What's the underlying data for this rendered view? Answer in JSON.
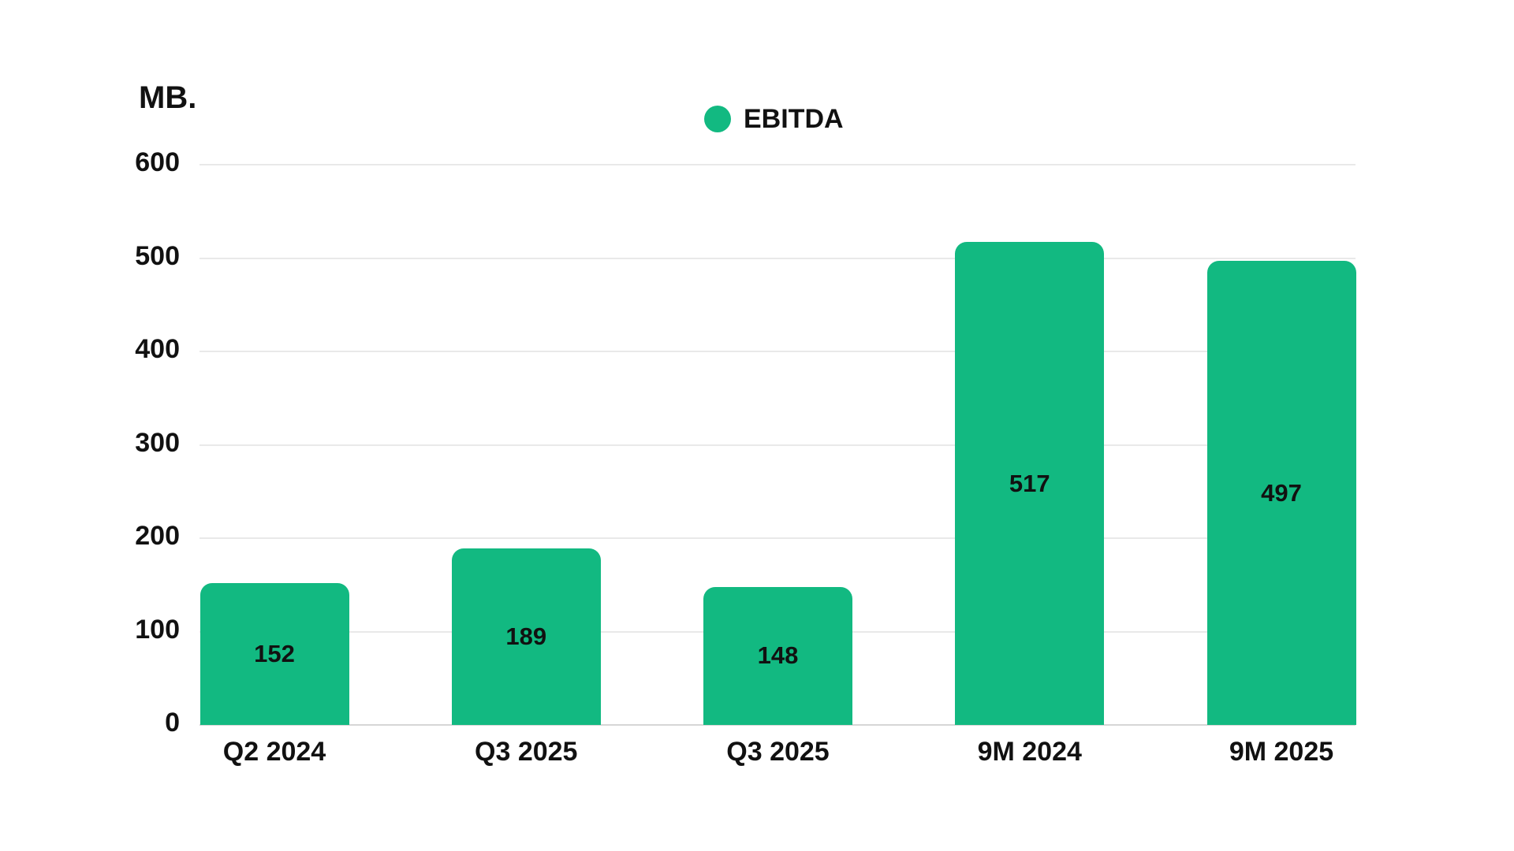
{
  "chart_data": {
    "type": "bar",
    "title": "",
    "unit_label": "MB.",
    "categories": [
      "Q2 2024",
      "Q3 2025",
      "Q3 2025",
      "9M 2024",
      "9M 2025"
    ],
    "series": [
      {
        "name": "EBITDA",
        "color": "#12B981",
        "values": [
          152,
          189,
          148,
          517,
          497
        ]
      }
    ],
    "value_labels": [
      "152",
      "189",
      "148",
      "517",
      "497"
    ],
    "yticks": [
      0,
      100,
      200,
      300,
      400,
      500,
      600
    ],
    "ylim": [
      0,
      600
    ],
    "grid": true,
    "legend": {
      "position": "top-center",
      "items": [
        {
          "label": "EBITDA",
          "color": "#12B981"
        }
      ]
    },
    "colors": {
      "bar": "#12B981",
      "gridline": "#e9e9e9",
      "axis_line": "#d6d6d6",
      "text": "#111111",
      "background": "#ffffff"
    }
  }
}
